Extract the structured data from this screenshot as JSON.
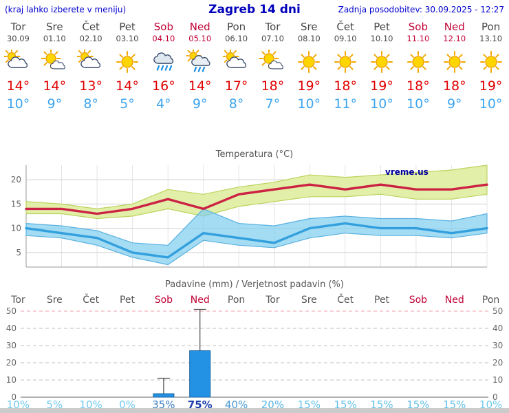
{
  "header": {
    "left_note": "(kraj lahko izberete v meniju)",
    "title": "Zagreb 14 dni",
    "updated": "Zadnja posodobitev: 30.09.2025 - 12:27"
  },
  "colors": {
    "link": "#0000cd",
    "title": "#0000bb",
    "day": "#474747",
    "weekend": "#c00034",
    "tmax": "#e00000",
    "tmin": "#3fa5ef",
    "bar": "#2492e4"
  },
  "days": [
    {
      "name": "Tor",
      "date": "30.09",
      "weekend": false,
      "icon": "sun-behind-cloud",
      "tmax_label": "14°",
      "tmin_label": "10°",
      "prob_label": "10%",
      "prob_color": "#6fc9ee",
      "prob_bold": false
    },
    {
      "name": "Sre",
      "date": "01.10",
      "weekend": false,
      "icon": "partly-cloudy",
      "tmax_label": "14°",
      "tmin_label": "9°",
      "prob_label": "5%",
      "prob_color": "#6fc9ee",
      "prob_bold": false
    },
    {
      "name": "Čet",
      "date": "02.10",
      "weekend": false,
      "icon": "sun-behind-cloud",
      "tmax_label": "13°",
      "tmin_label": "8°",
      "prob_label": "10%",
      "prob_color": "#6fc9ee",
      "prob_bold": false
    },
    {
      "name": "Pet",
      "date": "03.10",
      "weekend": false,
      "icon": "sunny",
      "tmax_label": "14°",
      "tmin_label": "5°",
      "prob_label": "0%",
      "prob_color": "#6fc9ee",
      "prob_bold": false
    },
    {
      "name": "Sob",
      "date": "04.10",
      "weekend": true,
      "icon": "rain",
      "tmax_label": "16°",
      "tmin_label": "4°",
      "prob_label": "35%",
      "prob_color": "#3d7fc4",
      "prob_bold": false
    },
    {
      "name": "Ned",
      "date": "05.10",
      "weekend": true,
      "icon": "rain-sun",
      "tmax_label": "14°",
      "tmin_label": "9°",
      "prob_label": "75%",
      "prob_color": "#1c3fae",
      "prob_bold": true
    },
    {
      "name": "Pon",
      "date": "06.10",
      "weekend": false,
      "icon": "sun-behind-cloud",
      "tmax_label": "17°",
      "tmin_label": "8°",
      "prob_label": "40%",
      "prob_color": "#4899d2",
      "prob_bold": false
    },
    {
      "name": "Tor",
      "date": "07.10",
      "weekend": false,
      "icon": "partly-cloudy",
      "tmax_label": "18°",
      "tmin_label": "7°",
      "prob_label": "20%",
      "prob_color": "#58b4e2",
      "prob_bold": false
    },
    {
      "name": "Sre",
      "date": "08.10",
      "weekend": false,
      "icon": "sunny",
      "tmax_label": "19°",
      "tmin_label": "10°",
      "prob_label": "15%",
      "prob_color": "#63c0e8",
      "prob_bold": false
    },
    {
      "name": "Čet",
      "date": "09.10",
      "weekend": false,
      "icon": "sunny",
      "tmax_label": "18°",
      "tmin_label": "11°",
      "prob_label": "15%",
      "prob_color": "#63c0e8",
      "prob_bold": false
    },
    {
      "name": "Pet",
      "date": "10.10",
      "weekend": false,
      "icon": "sunny",
      "tmax_label": "19°",
      "tmin_label": "10°",
      "prob_label": "15%",
      "prob_color": "#63c0e8",
      "prob_bold": false
    },
    {
      "name": "Sob",
      "date": "11.10",
      "weekend": true,
      "icon": "sunny",
      "tmax_label": "18°",
      "tmin_label": "10°",
      "prob_label": "15%",
      "prob_color": "#63c0e8",
      "prob_bold": false
    },
    {
      "name": "Ned",
      "date": "12.10",
      "weekend": true,
      "icon": "sunny",
      "tmax_label": "18°",
      "tmin_label": "9°",
      "prob_label": "15%",
      "prob_color": "#63c0e8",
      "prob_bold": false
    },
    {
      "name": "Pon",
      "date": "13.10",
      "weekend": false,
      "icon": "sunny",
      "tmax_label": "19°",
      "tmin_label": "10°",
      "prob_label": "10%",
      "prob_color": "#6fc9ee",
      "prob_bold": false
    }
  ],
  "chart_data": [
    {
      "type": "line",
      "title": "Temperatura (°C)",
      "x_labels": [
        "Tor",
        "Sre",
        "Čet",
        "Pet",
        "Sob",
        "Ned",
        "Pon",
        "Tor",
        "Sre",
        "Čet",
        "Pet",
        "Sob",
        "Ned",
        "Pon"
      ],
      "ylim": [
        2,
        23
      ],
      "yticks": [
        5,
        10,
        15,
        20
      ],
      "grid": true,
      "watermark": "vreme.us",
      "series": [
        {
          "name": "max-temp",
          "color": "#cc2244",
          "values": [
            14,
            14,
            13,
            14,
            16,
            14,
            17,
            18,
            19,
            18,
            19,
            18,
            18,
            19
          ]
        },
        {
          "name": "min-temp",
          "color": "#33a0dd",
          "values": [
            10,
            9,
            8,
            5,
            4,
            9,
            8,
            7,
            10,
            11,
            10,
            10,
            9,
            10
          ]
        }
      ],
      "bands": [
        {
          "name": "max-temp-range",
          "fill": "#e2efa8",
          "edge": "#bcd35e",
          "upper": [
            15.5,
            15,
            14,
            15,
            18,
            17,
            18.5,
            19.5,
            21,
            20.5,
            21,
            21.5,
            22,
            23
          ],
          "lower": [
            13,
            13,
            12,
            12.5,
            14,
            12.5,
            14.5,
            15.5,
            16.5,
            16.5,
            17,
            16,
            16,
            17
          ]
        },
        {
          "name": "min-temp-range",
          "fill": "rgba(125,205,240,0.7)",
          "edge": "#58b0e0",
          "upper": [
            11,
            10.5,
            9.5,
            7,
            6.5,
            14,
            11,
            10.5,
            12,
            12.5,
            12,
            12,
            11.5,
            13
          ],
          "lower": [
            8.5,
            8,
            6.5,
            4,
            2.5,
            7.5,
            6.5,
            6,
            8,
            9,
            8.5,
            8.5,
            8,
            9
          ]
        }
      ]
    },
    {
      "type": "bar",
      "title": "Padavine (mm) / Verjetnost padavin (%)",
      "categories": [
        "Tor",
        "Sre",
        "Čet",
        "Pet",
        "Sob",
        "Ned",
        "Pon",
        "Tor",
        "Sre",
        "Čet",
        "Pet",
        "Sob",
        "Ned",
        "Pon"
      ],
      "values": [
        0,
        0,
        0,
        0,
        2,
        27,
        0,
        0,
        0,
        0,
        0,
        0,
        0,
        0
      ],
      "range_max": [
        0,
        0,
        0,
        0,
        11,
        51,
        0,
        0,
        0,
        0,
        0,
        0,
        0,
        0
      ],
      "probabilities": [
        10,
        5,
        10,
        0,
        35,
        75,
        40,
        20,
        15,
        15,
        15,
        15,
        15,
        10
      ],
      "ylim": [
        0,
        50
      ],
      "yticks": [
        0,
        10,
        20,
        30,
        40,
        50
      ],
      "bar_color": "#2492e4",
      "legend_position": "none"
    }
  ]
}
